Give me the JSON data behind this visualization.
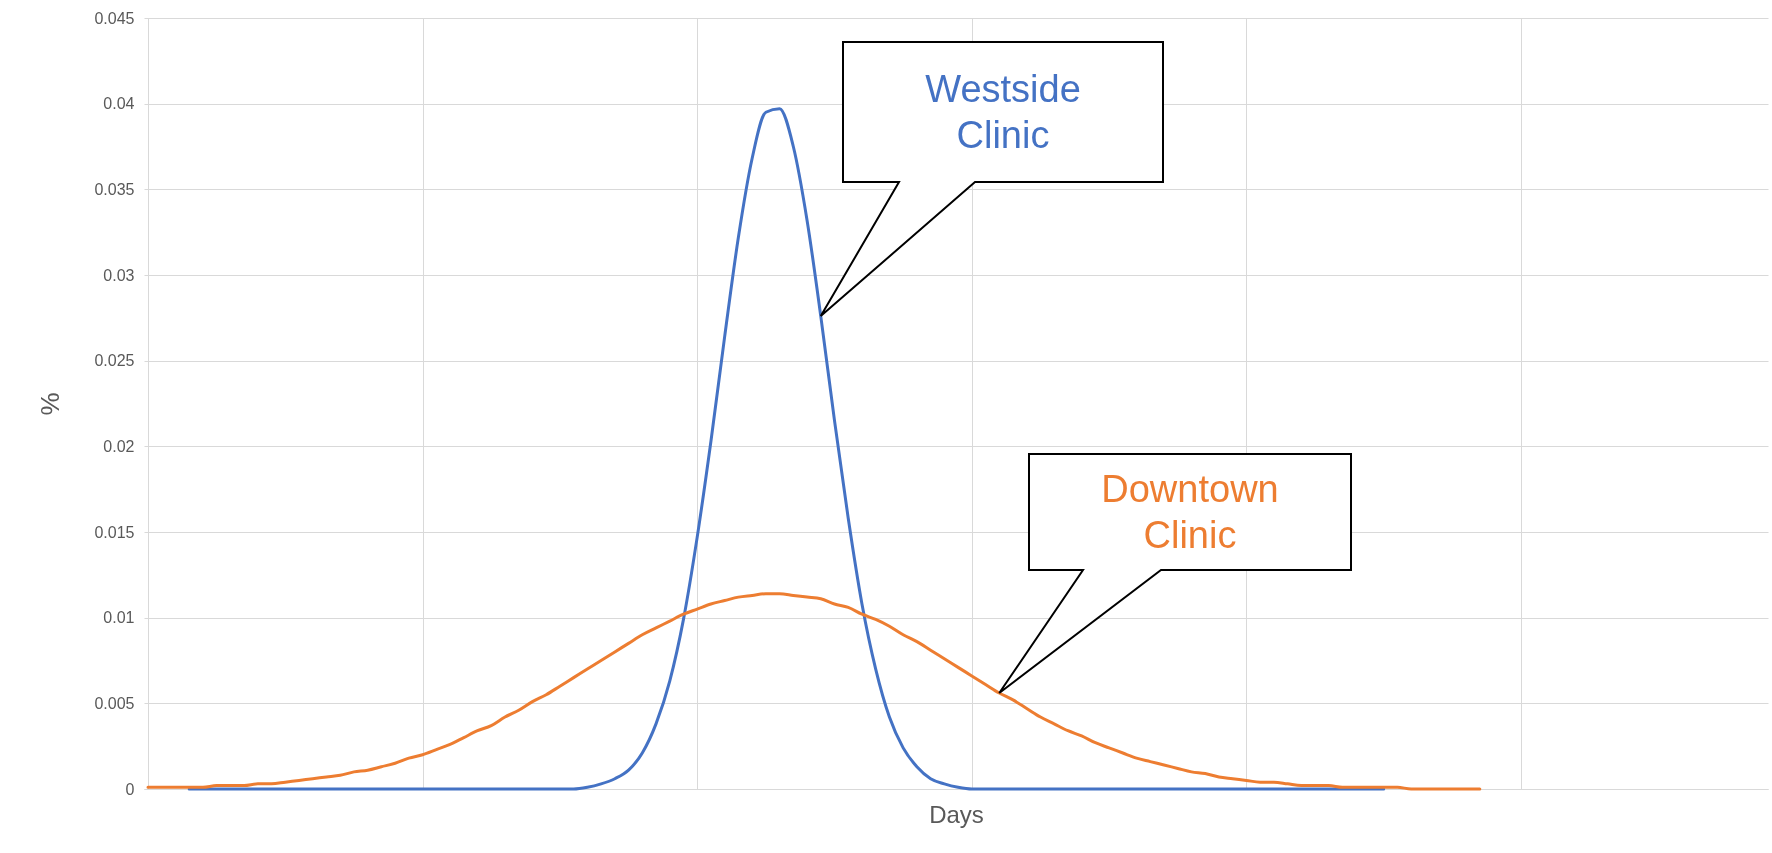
{
  "chart_data": {
    "type": "line",
    "xlabel": "Days",
    "ylabel": "%",
    "categories": [
      null,
      null,
      null,
      null,
      null,
      null,
      null,
      null,
      null,
      null,
      null,
      null,
      null,
      null,
      null,
      null,
      null,
      null,
      null,
      null,
      null,
      null,
      null,
      null,
      null,
      null,
      null,
      null,
      null,
      null,
      null,
      null,
      null,
      null,
      null,
      null,
      null,
      null,
      null,
      null,
      null,
      null,
      null,
      null,
      null,
      null,
      null,
      null,
      null,
      null,
      null,
      null,
      null,
      null,
      null,
      null,
      null,
      null,
      null,
      null,
      null,
      null,
      null,
      null,
      null,
      null,
      null,
      null,
      null,
      null,
      null,
      null,
      null,
      null,
      null,
      null,
      null,
      null,
      null,
      null,
      null,
      null,
      null,
      null,
      null,
      null,
      null,
      null,
      null,
      null,
      null,
      null,
      null,
      null,
      null,
      null,
      null,
      null
    ],
    "series": [
      {
        "name": "Westside Clinic",
        "color": "#4472c4",
        "values": [
          null,
          null,
          null,
          0,
          0,
          0,
          0,
          0,
          0,
          0,
          0,
          0,
          0,
          0,
          0,
          0,
          0,
          0,
          0,
          0,
          0,
          0,
          0,
          0,
          0,
          0,
          0,
          0,
          0,
          0,
          0,
          0,
          0.0001,
          0.0003,
          0.0006,
          0.0011,
          0.0021,
          0.0038,
          0.0063,
          0.0099,
          0.0147,
          0.0203,
          0.0264,
          0.0322,
          0.0368,
          0.0395,
          0.0397,
          0.0375,
          0.0332,
          0.0276,
          0.0215,
          0.0158,
          0.0108,
          0.007,
          0.0042,
          0.0024,
          0.0013,
          0.0006,
          0.0003,
          0.0001,
          0,
          0,
          0,
          0,
          0,
          0,
          0,
          0,
          0,
          0,
          0,
          0,
          0,
          0,
          0,
          0,
          0,
          0,
          0,
          0,
          0,
          0,
          0,
          0,
          0,
          0,
          0,
          0,
          0,
          0,
          0,
          null,
          null,
          null,
          null,
          null,
          null,
          null
        ]
      },
      {
        "name": "Downtown Clinic",
        "color": "#ed7d31",
        "values": [
          0.0001,
          0.0001,
          0.0001,
          0.0001,
          0.0001,
          0.0002,
          0.0002,
          0.0002,
          0.0003,
          0.0003,
          0.0004,
          0.0005,
          0.0006,
          0.0007,
          0.0008,
          0.001,
          0.0011,
          0.0013,
          0.0015,
          0.0018,
          0.002,
          0.0023,
          0.0026,
          0.003,
          0.0034,
          0.0037,
          0.0042,
          0.0046,
          0.0051,
          0.0055,
          0.006,
          0.0065,
          0.007,
          0.0075,
          0.008,
          0.0085,
          0.009,
          0.0094,
          0.0098,
          0.0102,
          0.0105,
          0.0108,
          0.011,
          0.0112,
          0.0113,
          0.0114,
          0.0114,
          0.0113,
          0.0112,
          0.0111,
          0.0108,
          0.0106,
          0.0102,
          0.0099,
          0.0095,
          0.009,
          0.0086,
          0.0081,
          0.0076,
          0.0071,
          0.0066,
          0.0061,
          0.0056,
          0.0052,
          0.0047,
          0.0042,
          0.0038,
          0.0034,
          0.0031,
          0.0027,
          0.0024,
          0.0021,
          0.0018,
          0.0016,
          0.0014,
          0.0012,
          0.001,
          0.0009,
          0.0007,
          0.0006,
          0.0005,
          0.0004,
          0.0004,
          0.0003,
          0.0002,
          0.0002,
          0.0002,
          0.0001,
          0.0001,
          0.0001,
          0.0001,
          0.0001,
          0,
          0,
          0,
          0,
          0,
          0
        ]
      }
    ],
    "ylim": [
      0,
      0.045
    ],
    "yticks": [
      0,
      0.005,
      0.01,
      0.015,
      0.02,
      0.025,
      0.03,
      0.035,
      0.04,
      0.045
    ],
    "grid": true,
    "marker": "none",
    "line_style": "solid"
  }
}
